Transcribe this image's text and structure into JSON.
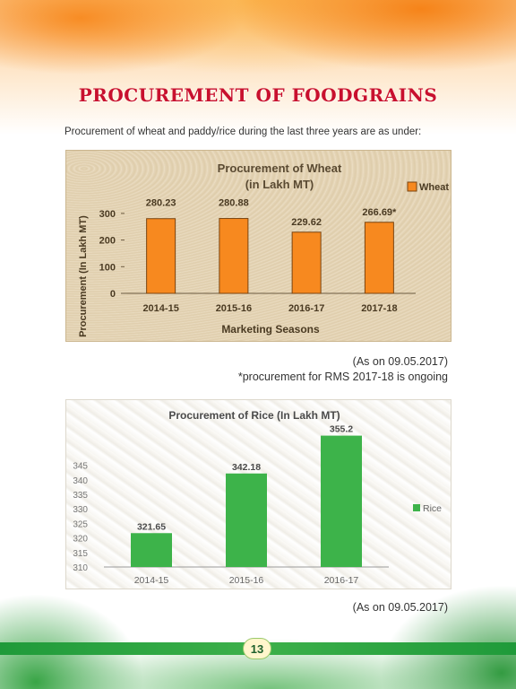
{
  "page": {
    "title": "PROCUREMENT OF FOODGRAINS",
    "intro": "Procurement of wheat and paddy/rice during the last three years are as under:",
    "page_number": "13",
    "colors": {
      "title": "#c8102e",
      "wheat_bar": "#f7891f",
      "rice_bar": "#3db34a",
      "footer": "#2aa541"
    }
  },
  "wheat_notes": {
    "as_on": "(As on 09.05.2017)",
    "ongoing": "*procurement for RMS 2017-18 is ongoing"
  },
  "rice_notes": {
    "as_on": "(As on 09.05.2017)"
  },
  "chart_data": [
    {
      "type": "bar",
      "title": "Procurement of Wheat",
      "subtitle": "(in Lakh MT)",
      "xlabel": "Marketing Seasons",
      "ylabel": "Procurement (In Lakh MT)",
      "categories": [
        "2014-15",
        "2015-16",
        "2016-17",
        "2017-18"
      ],
      "series": [
        {
          "name": "Wheat",
          "values": [
            280.23,
            280.88,
            229.62,
            266.69
          ],
          "color": "#f7891f"
        }
      ],
      "data_labels": [
        "280.23",
        "280.88",
        "229.62",
        "266.69*"
      ],
      "yticks": [
        0,
        100,
        200,
        300
      ],
      "ylim": [
        0,
        350
      ],
      "legend": "top-right",
      "grid": false
    },
    {
      "type": "bar",
      "title": "Procurement of Rice (In Lakh MT)",
      "categories": [
        "2014-15",
        "2015-16",
        "2016-17"
      ],
      "series": [
        {
          "name": "Rice",
          "values": [
            321.65,
            342.18,
            355.2
          ],
          "color": "#3db34a"
        }
      ],
      "data_labels": [
        "321.65",
        "342.18",
        "355.2"
      ],
      "yticks": [
        310,
        315,
        320,
        325,
        330,
        335,
        340,
        345
      ],
      "ylim": [
        310,
        356
      ],
      "legend": "right",
      "grid": false
    }
  ]
}
